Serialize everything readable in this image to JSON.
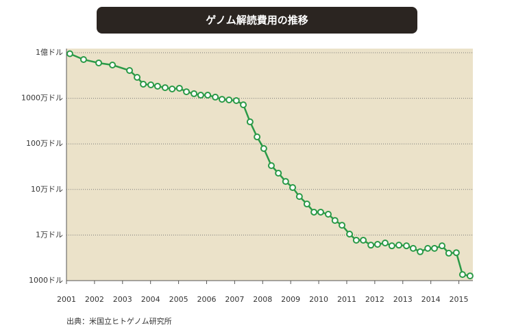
{
  "chart_data": {
    "type": "line",
    "title": "ゲノム解読費用の推移",
    "source": "出典：米国立ヒトゲノム研究所",
    "log_scale": true,
    "grid": true,
    "color": "#2a9a47",
    "background": "#ebe2c9",
    "x": [
      2001.12,
      2001.61,
      2002.15,
      2002.64,
      2003.25,
      2003.52,
      2003.74,
      2004.01,
      2004.25,
      2004.52,
      2004.77,
      2005.03,
      2005.28,
      2005.55,
      2005.79,
      2006.04,
      2006.31,
      2006.55,
      2006.8,
      2007.06,
      2007.31,
      2007.55,
      2007.8,
      2008.04,
      2008.31,
      2008.56,
      2008.82,
      2009.07,
      2009.31,
      2009.58,
      2009.83,
      2010.07,
      2010.34,
      2010.58,
      2010.83,
      2011.1,
      2011.34,
      2011.59,
      2011.86,
      2012.1,
      2012.37,
      2012.61,
      2012.86,
      2013.13,
      2013.37,
      2013.62,
      2013.89,
      2014.13,
      2014.4,
      2014.64,
      2014.91,
      2015.13,
      2015.4
    ],
    "values": [
      95000000,
      70800000,
      59600000,
      53700000,
      40700000,
      28800000,
      20400000,
      19700000,
      18400000,
      17100000,
      16000000,
      16600000,
      13900000,
      12600000,
      11700000,
      11700000,
      10600000,
      9500000,
      9200000,
      8900000,
      7200000,
      3040000,
      1420000,
      791000,
      333000,
      228000,
      150000,
      110000,
      70000,
      48000,
      31800,
      31800,
      28600,
      20900,
      16400,
      10500,
      7700,
      7700,
      6000,
      6250,
      6700,
      5800,
      6000,
      5800,
      5100,
      4300,
      5100,
      5100,
      5800,
      4000,
      4100,
      1360,
      1270
    ],
    "xlim": [
      2001,
      2015.5
    ],
    "xticks": [
      2001,
      2002,
      2003,
      2004,
      2005,
      2006,
      2007,
      2008,
      2009,
      2010,
      2011,
      2012,
      2013,
      2014,
      2015
    ],
    "ylim": [
      1000,
      100000000
    ],
    "yticks": [
      {
        "value": 1000,
        "label": "1000ドル"
      },
      {
        "value": 10000,
        "label": "1万ドル"
      },
      {
        "value": 100000,
        "label": "10万ドル"
      },
      {
        "value": 1000000,
        "label": "100万ドル"
      },
      {
        "value": 10000000,
        "label": "1000万ドル"
      },
      {
        "value": 100000000,
        "label": "1億ドル"
      }
    ]
  }
}
